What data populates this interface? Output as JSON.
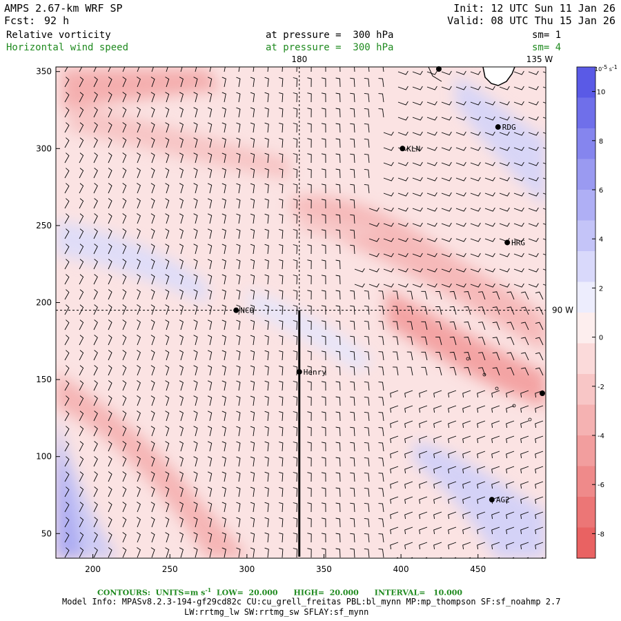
{
  "header": {
    "model": "AMPS 2.67-km WRF SP",
    "fcst_label": "Fcst:",
    "fcst_value": "92 h",
    "init": "Init: 12 UTC Sun 11 Jan 26",
    "valid": "Valid: 08 UTC Thu 15 Jan 26",
    "field1_name": "Relative vorticity",
    "field1_level": "at pressure =  300 hPa",
    "field1_sm": "sm= 1",
    "field2_name": "Horizontal wind speed",
    "field2_level": "at pressure =  300 hPa",
    "field2_sm": "sm= 4"
  },
  "map": {
    "x_ticks": [
      "200",
      "250",
      "300",
      "350",
      "400",
      "450"
    ],
    "y_ticks": [
      "350",
      "300",
      "250",
      "200",
      "150",
      "100",
      "50"
    ],
    "lon_labels": {
      "top_center": "180",
      "top_right": "135 W",
      "right": "90 W"
    },
    "stations": [
      {
        "name": "KLN",
        "x": 401,
        "y": 300
      },
      {
        "name": "RDG",
        "x": 463,
        "y": 314
      },
      {
        "name": "HRG",
        "x": 469,
        "y": 239
      },
      {
        "name": "NCO",
        "x": 293,
        "y": 195
      },
      {
        "name": "Henry",
        "x": 334,
        "y": 155
      },
      {
        "name": "AG2",
        "x": 459,
        "y": 72
      }
    ],
    "cross_section_line": {
      "x": 334,
      "y_from": 35,
      "y_to": 195
    }
  },
  "colorbar": {
    "unit_label": "10",
    "unit_exp": "-5",
    "unit_suffix": " s",
    "unit_suffix_exp": "-1",
    "ticks": [
      "10",
      "8",
      "6",
      "4",
      "2",
      "0",
      "-2",
      "-4",
      "-6",
      "-8"
    ],
    "colors": [
      "#5a5ae6",
      "#6f6fea",
      "#8585ee",
      "#9a9af1",
      "#afaff5",
      "#c4c4f8",
      "#d9d9fb",
      "#ededfd",
      "#fdeeee",
      "#fbdada",
      "#f8c6c6",
      "#f5b2b2",
      "#f29e9e",
      "#ef8a8a",
      "#ec7676",
      "#e96262"
    ]
  },
  "footer": {
    "contours": "CONTOURS:  UNITS=m s",
    "contours_exp": "-1",
    "contours_rest": "  LOW=  20.000      HIGH=  20.000      INTERVAL=   10.000",
    "model_info": "Model Info: MPASv8.2.3-194-gf29cd82c CU:cu_grell_freitas PBL:bl_mynn MP:mp_thompson SF:sf_noahmp 2.7",
    "model_info2": "LW:rrtmg_lw SW:rrtmg_sw SFLAY:sf_mynn"
  }
}
